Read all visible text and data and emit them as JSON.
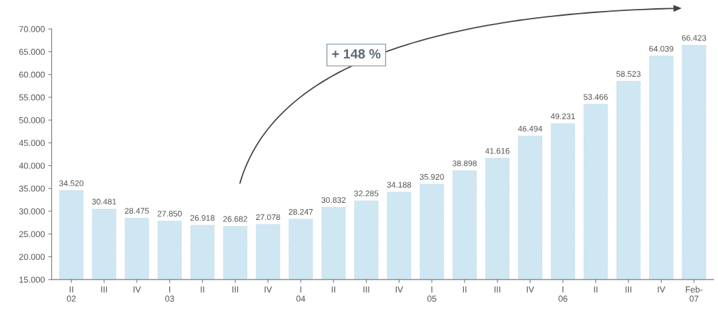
{
  "chart_data": {
    "type": "bar",
    "categories": [
      "II\n02",
      "III",
      "IV",
      "I\n03",
      "II",
      "III",
      "IV",
      "I\n04",
      "II",
      "III",
      "IV",
      "I\n05",
      "II",
      "III",
      "IV",
      "I\n06",
      "II",
      "III",
      "IV",
      "Feb-\n07"
    ],
    "values": [
      34520,
      30481,
      28475,
      27850,
      26918,
      26682,
      27078,
      28247,
      30832,
      32285,
      34188,
      35920,
      38898,
      41616,
      46494,
      49231,
      53466,
      58523,
      64039,
      66423
    ],
    "value_labels": [
      "34.520",
      "30.481",
      "28.475",
      "27.850",
      "26.918",
      "26.682",
      "27.078",
      "28.247",
      "30.832",
      "32.285",
      "34.188",
      "35.920",
      "38.898",
      "41.616",
      "46.494",
      "49.231",
      "53.466",
      "58.523",
      "64.039",
      "66.423"
    ],
    "color": "#cfe7f3",
    "ylim": [
      15000,
      70000
    ],
    "yticks": [
      {
        "value": 15000,
        "label": "15.000"
      },
      {
        "value": 20000,
        "label": "20.000"
      },
      {
        "value": 25000,
        "label": "25.000"
      },
      {
        "value": 30000,
        "label": "30.000"
      },
      {
        "value": 35000,
        "label": "35.000"
      },
      {
        "value": 40000,
        "label": "40.000"
      },
      {
        "value": 45000,
        "label": "45.000"
      },
      {
        "value": 50000,
        "label": "50.000"
      },
      {
        "value": 55000,
        "label": "55.000"
      },
      {
        "value": 60000,
        "label": "60.000"
      },
      {
        "value": 65000,
        "label": "65.000"
      },
      {
        "value": 70000,
        "label": "70.000"
      }
    ],
    "grid": false,
    "legend": false,
    "annotations": [
      "+ 148 %"
    ]
  }
}
